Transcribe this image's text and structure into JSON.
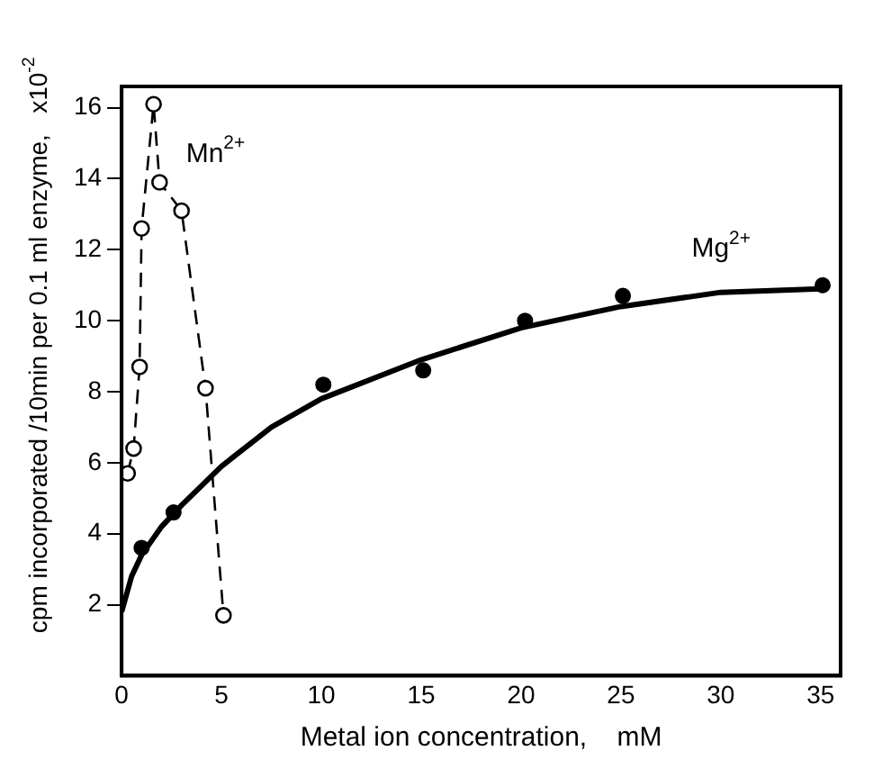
{
  "chart_data": {
    "type": "scatter",
    "xlabel": "Metal ion concentration,    mM",
    "ylabel": "cpm incorporated /10min per 0.1 ml enzyme,   x10$^{-2}$",
    "xlim": [
      0,
      36
    ],
    "xticks": [
      0,
      5,
      10,
      15,
      20,
      25,
      30,
      35
    ],
    "ylim": [
      0,
      16.6
    ],
    "yticks": [
      2,
      4,
      6,
      8,
      10,
      12,
      14,
      16
    ],
    "grid": false,
    "legend": false,
    "series": [
      {
        "name": "Mn$^{2+}$",
        "type": "line",
        "color": "#000000",
        "marker": "circle",
        "line_style": "dashed",
        "x": [
          0.3,
          0.6,
          0.9,
          1.0,
          1.6,
          1.9,
          3.0,
          4.2,
          5.1
        ],
        "values": [
          5.7,
          6.4,
          8.7,
          12.6,
          16.1,
          13.9,
          13.1,
          8.1,
          1.7
        ]
      },
      {
        "name": "Mg$^{2+}$",
        "color": "#000000",
        "marker": "circle",
        "x": [
          1.0,
          2.6,
          10.1,
          15.1,
          20.2,
          25.1,
          35.1
        ],
        "values": [
          3.6,
          4.6,
          8.2,
          8.6,
          10.0,
          10.7,
          11.0
        ]
      },
      {
        "type": "line",
        "color": "#000000",
        "marker": "none",
        "line_style": "solid",
        "x": [
          0,
          0.5,
          1,
          2,
          3,
          5,
          7.5,
          10,
          15,
          20,
          25,
          30,
          35
        ],
        "values": [
          1.8,
          2.8,
          3.4,
          4.2,
          4.8,
          5.9,
          7.0,
          7.8,
          8.9,
          9.8,
          10.4,
          10.8,
          10.9
        ]
      }
    ]
  }
}
